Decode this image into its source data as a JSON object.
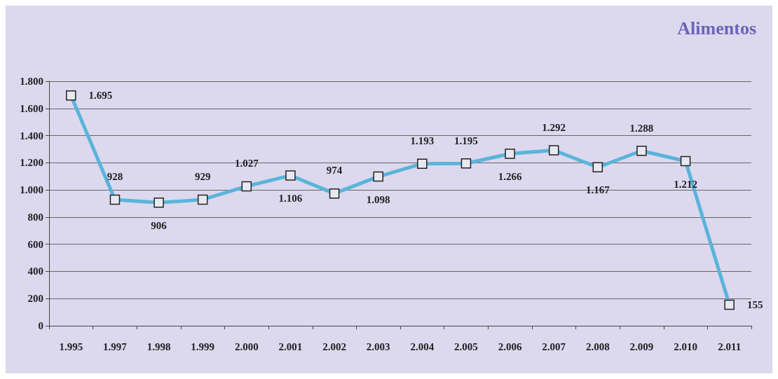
{
  "chart_data": {
    "type": "line",
    "title": "Alimentos",
    "categories": [
      "1.995",
      "1.997",
      "1.998",
      "1.999",
      "2.000",
      "2.001",
      "2.002",
      "2.003",
      "2.004",
      "2.005",
      "2.006",
      "2.007",
      "2.008",
      "2.009",
      "2.010",
      "2.011"
    ],
    "series": [
      {
        "color": "#5ab4da",
        "values": [
          1695,
          928,
          906,
          929,
          1027,
          1106,
          974,
          1098,
          1193,
          1195,
          1266,
          1292,
          1167,
          1288,
          1212,
          155
        ],
        "value_labels": [
          "1.695",
          "928",
          "906",
          "929",
          "1.027",
          "1.106",
          "974",
          "1.098",
          "1.193",
          "1.195",
          "1.266",
          "1.292",
          "1.167",
          "1.288",
          "1.212",
          "155"
        ]
      }
    ],
    "ylim": [
      0,
      1800
    ],
    "yticks": [
      0,
      200,
      400,
      600,
      800,
      {
        "value": 1000,
        "label": "1.000"
      },
      {
        "value": 1200,
        "label": "1.200"
      },
      {
        "value": 1400,
        "label": "1.400"
      },
      {
        "value": 1600,
        "label": "1.600"
      },
      {
        "value": 1800,
        "label": "1.800"
      }
    ],
    "grid": "y",
    "marker": "square",
    "line_style": "solid"
  }
}
